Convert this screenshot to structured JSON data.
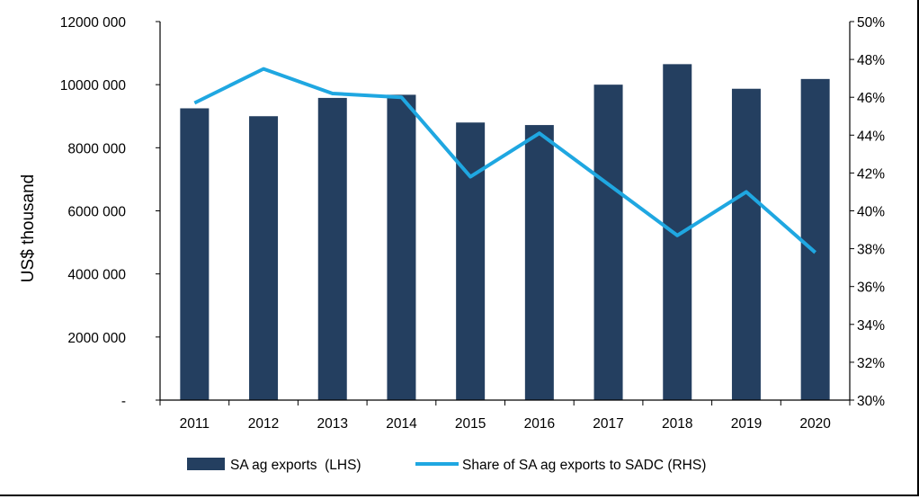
{
  "chart_data": {
    "type": "bar",
    "categories": [
      "2011",
      "2012",
      "2013",
      "2014",
      "2015",
      "2016",
      "2017",
      "2018",
      "2019",
      "2020"
    ],
    "series": [
      {
        "name": "SA ag exports  (LHS)",
        "type": "bar",
        "axis": "left",
        "color": "#243F60",
        "values": [
          9250000,
          9000000,
          9580000,
          9680000,
          8800000,
          8720000,
          10000000,
          10650000,
          9870000,
          10180000
        ]
      },
      {
        "name": "Share of SA ag exports to SADC (RHS)",
        "type": "line",
        "axis": "right",
        "color": "#1FA7E1",
        "values": [
          45.7,
          47.5,
          46.2,
          46.0,
          41.8,
          44.1,
          41.4,
          38.7,
          41.0,
          37.8
        ]
      }
    ],
    "ylabel": "US$ thousand",
    "ylim": [
      0,
      12000000
    ],
    "y_ticks": [
      "-",
      "2000 000",
      "4000 000",
      "6000 000",
      "8000 000",
      "10000 000",
      "12000 000"
    ],
    "y2lim": [
      30,
      50
    ],
    "y2_ticks": [
      "30%",
      "32%",
      "34%",
      "36%",
      "38%",
      "40%",
      "42%",
      "44%",
      "46%",
      "48%",
      "50%"
    ],
    "grid": false,
    "legend_position": "bottom"
  }
}
